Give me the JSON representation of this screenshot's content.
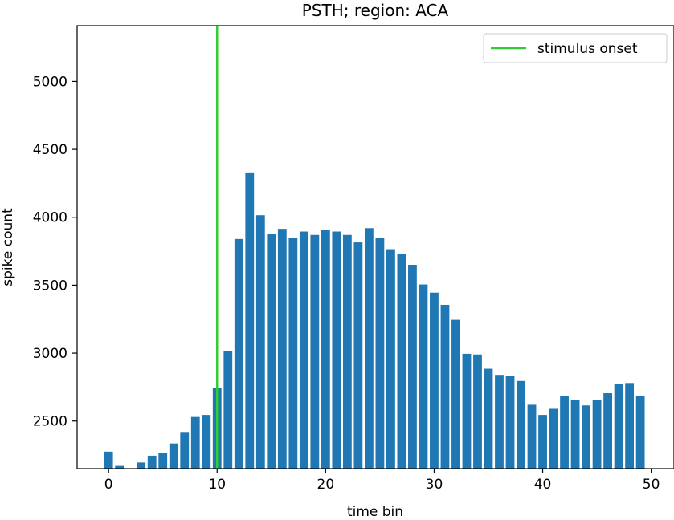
{
  "chart_data": {
    "type": "bar",
    "title": "PSTH; region: ACA",
    "xlabel": "time bin",
    "ylabel": "spike count",
    "xlim": [
      -2.9,
      52.1
    ],
    "ylim": [
      2150,
      5410
    ],
    "xticks": [
      0,
      10,
      20,
      30,
      40,
      50
    ],
    "yticks": [
      2500,
      3000,
      3500,
      4000,
      4500,
      5000
    ],
    "bar_color": "#1f77b4",
    "x": [
      0,
      1,
      2,
      3,
      4,
      5,
      6,
      7,
      8,
      9,
      10,
      11,
      12,
      13,
      14,
      15,
      16,
      17,
      18,
      19,
      20,
      21,
      22,
      23,
      24,
      25,
      26,
      27,
      28,
      29,
      30,
      31,
      32,
      33,
      34,
      35,
      36,
      37,
      38,
      39,
      40,
      41,
      42,
      43,
      44,
      45,
      46,
      47,
      48,
      49
    ],
    "values": [
      2275,
      2170,
      2150,
      2195,
      2245,
      2265,
      2335,
      2420,
      2530,
      2545,
      2745,
      3015,
      3840,
      4330,
      4015,
      3880,
      3915,
      3845,
      3895,
      3870,
      3910,
      3895,
      3870,
      3815,
      3920,
      3845,
      3765,
      3730,
      3650,
      3505,
      3445,
      3355,
      3245,
      2995,
      2990,
      2885,
      2840,
      2830,
      2795,
      2620,
      2545,
      2590,
      2685,
      2655,
      2615,
      2655,
      2705,
      2770,
      2780,
      2685
    ],
    "vline": {
      "x": 10,
      "label": "stimulus onset",
      "color": "#32cd32"
    },
    "legend": {
      "placement": "top-right",
      "entries": [
        "stimulus onset"
      ]
    },
    "grid": false
  }
}
